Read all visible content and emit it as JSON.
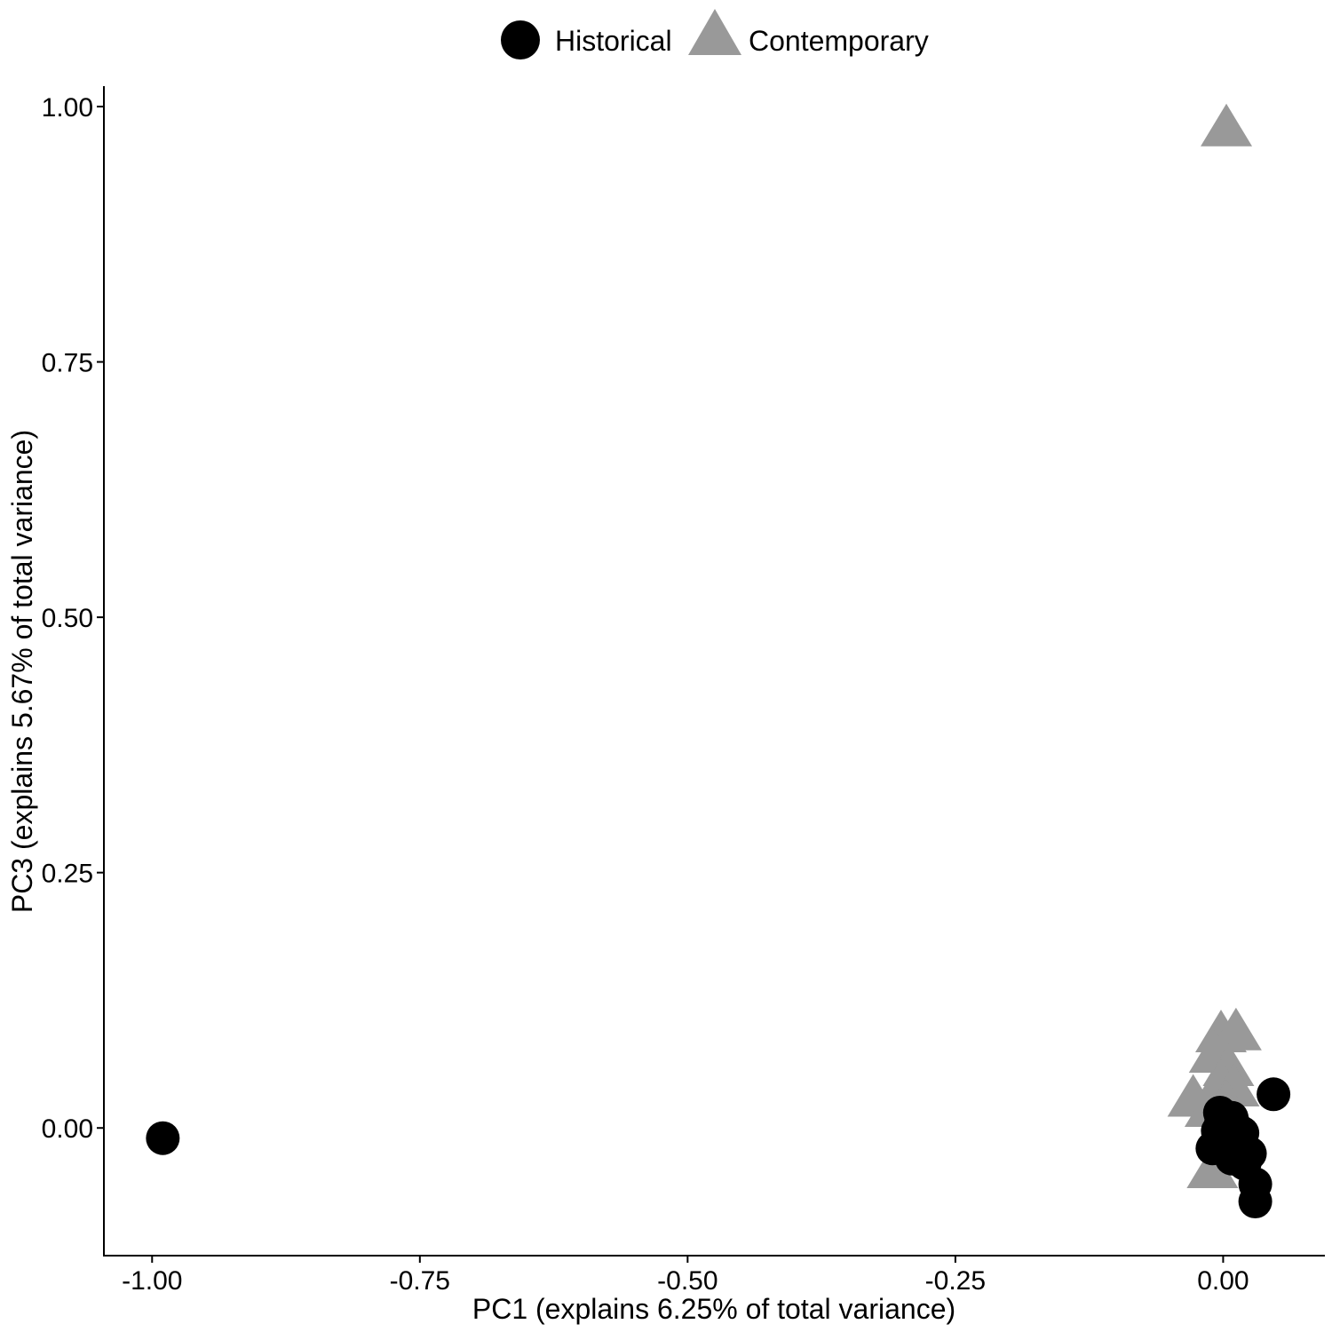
{
  "chart_data": {
    "type": "scatter",
    "title": "",
    "xlabel": "PC1 (explains 6.25% of total variance)",
    "ylabel": "PC3 (explains 5.67% of total variance)",
    "xlim": [
      -1.045,
      0.095
    ],
    "ylim": [
      -0.125,
      1.02
    ],
    "x_ticks": [
      -1.0,
      -0.75,
      -0.5,
      -0.25,
      0.0
    ],
    "x_tick_labels": [
      "-1.00",
      "-0.75",
      "-0.50",
      "-0.25",
      "0.00"
    ],
    "y_ticks": [
      0.0,
      0.25,
      0.5,
      0.75,
      1.0
    ],
    "y_tick_labels": [
      "0.00",
      "0.25",
      "0.50",
      "0.75",
      "1.00"
    ],
    "grid": false,
    "legend_position": "top",
    "series": [
      {
        "name": "Historical",
        "marker": "circle",
        "color": "#000000",
        "points": [
          {
            "x": -0.99,
            "y": -0.01
          },
          {
            "x": 0.047,
            "y": 0.033
          },
          {
            "x": -0.003,
            "y": 0.015
          },
          {
            "x": 0.008,
            "y": 0.01
          },
          {
            "x": -0.002,
            "y": 0.005
          },
          {
            "x": 0.01,
            "y": 0.0
          },
          {
            "x": -0.005,
            "y": -0.003
          },
          {
            "x": 0.005,
            "y": -0.008
          },
          {
            "x": 0.018,
            "y": -0.005
          },
          {
            "x": -0.01,
            "y": -0.02
          },
          {
            "x": 0.0,
            "y": -0.015
          },
          {
            "x": 0.015,
            "y": -0.022
          },
          {
            "x": 0.025,
            "y": -0.025
          },
          {
            "x": 0.008,
            "y": -0.03
          },
          {
            "x": 0.02,
            "y": -0.035
          },
          {
            "x": 0.03,
            "y": -0.055
          },
          {
            "x": 0.03,
            "y": -0.072
          }
        ]
      },
      {
        "name": "Contemporary",
        "marker": "triangle",
        "color": "#999999",
        "points": [
          {
            "x": 0.003,
            "y": 0.975
          },
          {
            "x": -0.002,
            "y": 0.088
          },
          {
            "x": 0.012,
            "y": 0.09
          },
          {
            "x": -0.008,
            "y": 0.068
          },
          {
            "x": 0.005,
            "y": 0.055
          },
          {
            "x": -0.002,
            "y": 0.04
          },
          {
            "x": 0.01,
            "y": 0.035
          },
          {
            "x": -0.028,
            "y": 0.025
          },
          {
            "x": 0.003,
            "y": 0.02
          },
          {
            "x": -0.012,
            "y": 0.015
          },
          {
            "x": 0.008,
            "y": 0.005
          },
          {
            "x": -0.01,
            "y": -0.045
          }
        ]
      }
    ]
  }
}
